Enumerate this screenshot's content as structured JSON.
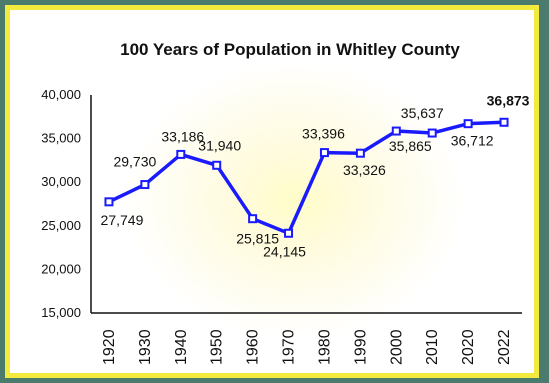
{
  "chart_data": {
    "type": "line",
    "title": "100 Years of Population in Whitley County",
    "xlabel": "",
    "ylabel": "",
    "categories": [
      "1920",
      "1930",
      "1940",
      "1950",
      "1960",
      "1970",
      "1980",
      "1990",
      "2000",
      "2010",
      "2020",
      "2022"
    ],
    "values": [
      27749,
      29730,
      33186,
      31940,
      25815,
      24145,
      33396,
      33326,
      35865,
      35637,
      36712,
      36873
    ],
    "data_labels": [
      "27,749",
      "29,730",
      "33,186",
      "31,940",
      "25,815",
      "24,145",
      "33,396",
      "33,326",
      "35,865",
      "35,637",
      "36,712",
      "36,873"
    ],
    "ylim": [
      15000,
      40000
    ],
    "yticks": [
      15000,
      20000,
      25000,
      30000,
      35000,
      40000
    ],
    "ytick_labels": [
      "15,000",
      "20,000",
      "25,000",
      "30,000",
      "35,000",
      "40,000"
    ],
    "grid": false,
    "legend": "none",
    "colors": {
      "line": "#1a1aff",
      "marker_fill": "#ffffff",
      "frame": "#f2ea3c",
      "background_outer": "#4a7b6d"
    }
  }
}
